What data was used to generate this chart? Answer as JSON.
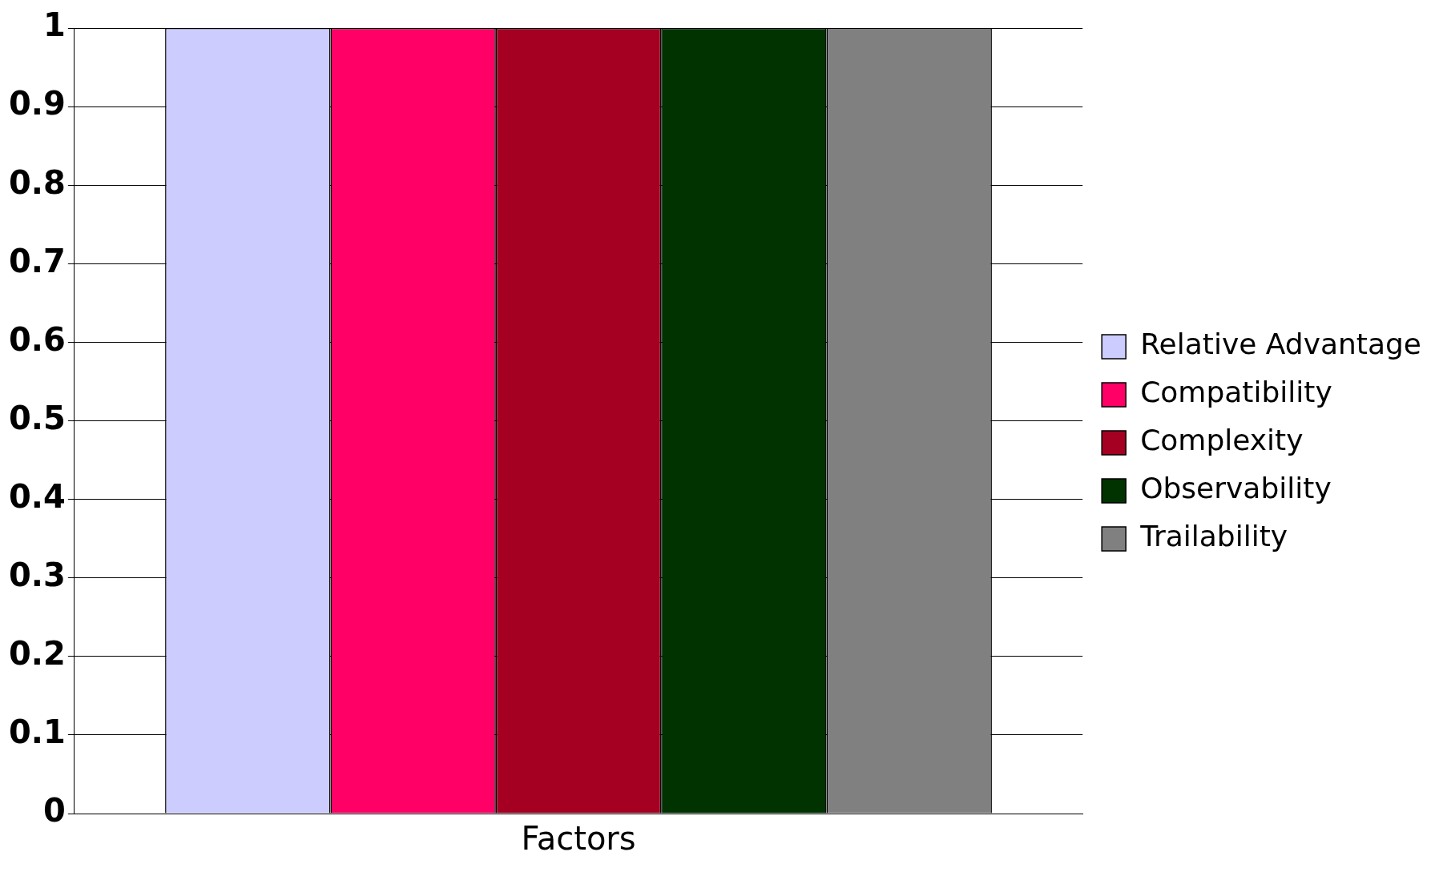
{
  "chart_data": {
    "type": "bar",
    "categories": [
      "Factors"
    ],
    "series": [
      {
        "name": "Relative Advantage",
        "color": "#ccccff",
        "values": [
          1
        ]
      },
      {
        "name": "Compatibility",
        "color": "#ff0066",
        "values": [
          1
        ]
      },
      {
        "name": "Complexity",
        "color": "#a50021",
        "values": [
          1
        ]
      },
      {
        "name": "Observability",
        "color": "#003300",
        "values": [
          1
        ]
      },
      {
        "name": "Trailability",
        "color": "#808080",
        "values": [
          1
        ]
      }
    ],
    "ylim": [
      0,
      1
    ],
    "yticks": [
      0,
      0.1,
      0.2,
      0.3,
      0.4,
      0.5,
      0.6,
      0.7,
      0.8,
      0.9,
      1
    ],
    "grid": "y",
    "legend": "right"
  }
}
